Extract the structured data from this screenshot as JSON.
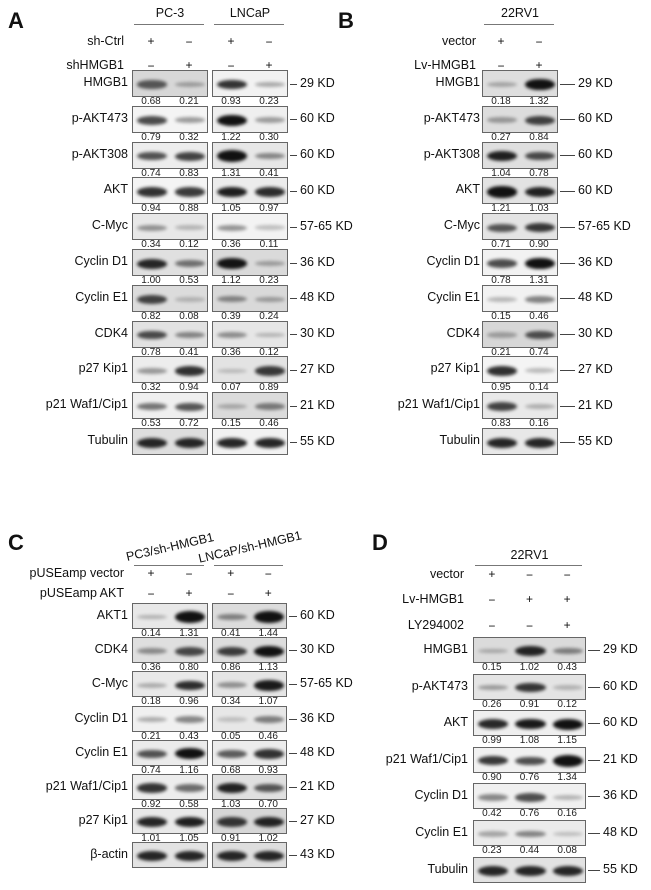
{
  "panels": [
    {
      "id": "A",
      "groups": [
        "PC-3",
        "LNCaP"
      ],
      "conditions": [
        {
          "label": "sh-Ctrl",
          "signs": [
            [
              "+",
              "−"
            ],
            [
              "+",
              "−"
            ]
          ]
        },
        {
          "label": "shHMGB1",
          "signs": [
            [
              "−",
              "+"
            ],
            [
              "−",
              "+"
            ]
          ]
        }
      ],
      "rows": [
        {
          "protein": "HMGB1",
          "kd": "29 KD",
          "values": [
            [
              0.68,
              0.21
            ],
            [
              0.93,
              0.23
            ]
          ]
        },
        {
          "protein": "p-AKT473",
          "kd": "60 KD",
          "values": [
            [
              0.79,
              0.32
            ],
            [
              1.22,
              0.3
            ]
          ]
        },
        {
          "protein": "p-AKT308",
          "kd": "60 KD",
          "values": [
            [
              0.74,
              0.83
            ],
            [
              1.31,
              0.41
            ]
          ]
        },
        {
          "protein": "AKT",
          "kd": "60 KD",
          "values": [
            [
              0.94,
              0.88
            ],
            [
              1.05,
              0.97
            ]
          ]
        },
        {
          "protein": "C-Myc",
          "kd": "57-65 KD",
          "values": [
            [
              0.34,
              0.12
            ],
            [
              0.36,
              0.11
            ]
          ]
        },
        {
          "protein": "Cyclin D1",
          "kd": "36 KD",
          "values": [
            [
              1.0,
              0.53
            ],
            [
              1.12,
              0.23
            ]
          ]
        },
        {
          "protein": "Cyclin E1",
          "kd": "48 KD",
          "values": [
            [
              0.82,
              0.08
            ],
            [
              0.39,
              0.24
            ]
          ]
        },
        {
          "protein": "CDK4",
          "kd": "30 KD",
          "values": [
            [
              0.78,
              0.41
            ],
            [
              0.36,
              0.12
            ]
          ]
        },
        {
          "protein": "p27 Kip1",
          "kd": "27 KD",
          "values": [
            [
              0.32,
              0.94
            ],
            [
              0.07,
              0.89
            ]
          ]
        },
        {
          "protein": "p21 Waf1/Cip1",
          "kd": "21 KD",
          "values": [
            [
              0.53,
              0.72
            ],
            [
              0.15,
              0.46
            ]
          ]
        },
        {
          "protein": "Tubulin",
          "kd": "55 KD",
          "values": [
            null,
            null
          ]
        }
      ]
    },
    {
      "id": "B",
      "groups": [
        "22RV1"
      ],
      "conditions": [
        {
          "label": "vector",
          "signs": [
            [
              "+",
              "−"
            ]
          ]
        },
        {
          "label": "Lv-HMGB1",
          "signs": [
            [
              "−",
              "+"
            ]
          ]
        }
      ],
      "rows": [
        {
          "protein": "HMGB1",
          "kd": "29 KD",
          "values": [
            [
              0.18,
              1.32
            ]
          ]
        },
        {
          "protein": "p-AKT473",
          "kd": "60 KD",
          "values": [
            [
              0.27,
              0.84
            ]
          ]
        },
        {
          "protein": "p-AKT308",
          "kd": "60 KD",
          "values": [
            [
              1.04,
              0.78
            ]
          ]
        },
        {
          "protein": "AKT",
          "kd": "60 KD",
          "values": [
            [
              1.21,
              1.03
            ]
          ]
        },
        {
          "protein": "C-Myc",
          "kd": "57-65 KD",
          "values": [
            [
              0.71,
              0.9
            ]
          ]
        },
        {
          "protein": "Cyclin D1",
          "kd": "36 KD",
          "values": [
            [
              0.78,
              1.31
            ]
          ]
        },
        {
          "protein": "Cyclin E1",
          "kd": "48 KD",
          "values": [
            [
              0.15,
              0.46
            ]
          ]
        },
        {
          "protein": "CDK4",
          "kd": "30 KD",
          "values": [
            [
              0.21,
              0.74
            ]
          ]
        },
        {
          "protein": "p27 Kip1",
          "kd": "27 KD",
          "values": [
            [
              0.95,
              0.14
            ]
          ]
        },
        {
          "protein": "p21 Waf1/Cip1",
          "kd": "21 KD",
          "values": [
            [
              0.83,
              0.16
            ]
          ]
        },
        {
          "protein": "Tubulin",
          "kd": "55 KD",
          "values": [
            null
          ]
        }
      ]
    },
    {
      "id": "C",
      "groups": [
        "PC3/sh-HMGB1",
        "LNCaP/sh-HMGB1"
      ],
      "conditions": [
        {
          "label": "pUSEamp vector",
          "signs": [
            [
              "+",
              "−"
            ],
            [
              "+",
              "−"
            ]
          ]
        },
        {
          "label": "pUSEamp AKT",
          "signs": [
            [
              "−",
              "+"
            ],
            [
              "−",
              "+"
            ]
          ]
        }
      ],
      "rows": [
        {
          "protein": "AKT1",
          "kd": "60 KD",
          "values": [
            [
              0.14,
              1.31
            ],
            [
              0.41,
              1.44
            ]
          ]
        },
        {
          "protein": "CDK4",
          "kd": "30 KD",
          "values": [
            [
              0.36,
              0.8
            ],
            [
              0.86,
              1.13
            ]
          ]
        },
        {
          "protein": "C-Myc",
          "kd": "57-65 KD",
          "values": [
            [
              0.18,
              0.96
            ],
            [
              0.34,
              1.07
            ]
          ]
        },
        {
          "protein": "Cyclin D1",
          "kd": "36 KD",
          "values": [
            [
              0.21,
              0.43
            ],
            [
              0.05,
              0.46
            ]
          ]
        },
        {
          "protein": "Cyclin E1",
          "kd": "48 KD",
          "values": [
            [
              0.74,
              1.16
            ],
            [
              0.68,
              0.93
            ]
          ]
        },
        {
          "protein": "p21 Waf1/Cip1",
          "kd": "21 KD",
          "values": [
            [
              0.92,
              0.58
            ],
            [
              1.03,
              0.7
            ]
          ]
        },
        {
          "protein": "p27 Kip1",
          "kd": "27 KD",
          "values": [
            [
              1.01,
              1.05
            ],
            [
              0.91,
              1.02
            ]
          ]
        },
        {
          "protein": "β-actin",
          "kd": "43 KD",
          "values": [
            null,
            null
          ]
        }
      ]
    },
    {
      "id": "D",
      "groups": [
        "22RV1"
      ],
      "conditions": [
        {
          "label": "vector",
          "signs": [
            [
              "+",
              "−",
              "−"
            ]
          ]
        },
        {
          "label": "Lv-HMGB1",
          "signs": [
            [
              "−",
              "+",
              "+"
            ]
          ]
        },
        {
          "label": "LY294002",
          "signs": [
            [
              "−",
              "−",
              "+"
            ]
          ]
        }
      ],
      "rows": [
        {
          "protein": "HMGB1",
          "kd": "29 KD",
          "values": [
            [
              0.15,
              1.02,
              0.43
            ]
          ]
        },
        {
          "protein": "p-AKT473",
          "kd": "60 KD",
          "values": [
            [
              0.26,
              0.91,
              0.12
            ]
          ]
        },
        {
          "protein": "AKT",
          "kd": "60 KD",
          "values": [
            [
              0.99,
              1.08,
              1.15
            ]
          ]
        },
        {
          "protein": "p21 Waf1/Cip1",
          "kd": "21 KD",
          "values": [
            [
              0.9,
              0.76,
              1.34
            ]
          ]
        },
        {
          "protein": "Cyclin D1",
          "kd": "36 KD",
          "values": [
            [
              0.42,
              0.76,
              0.16
            ]
          ]
        },
        {
          "protein": "Cyclin E1",
          "kd": "48 KD",
          "values": [
            [
              0.23,
              0.44,
              0.08
            ]
          ]
        },
        {
          "protein": "Tubulin",
          "kd": "55 KD",
          "values": [
            null
          ]
        }
      ]
    }
  ]
}
